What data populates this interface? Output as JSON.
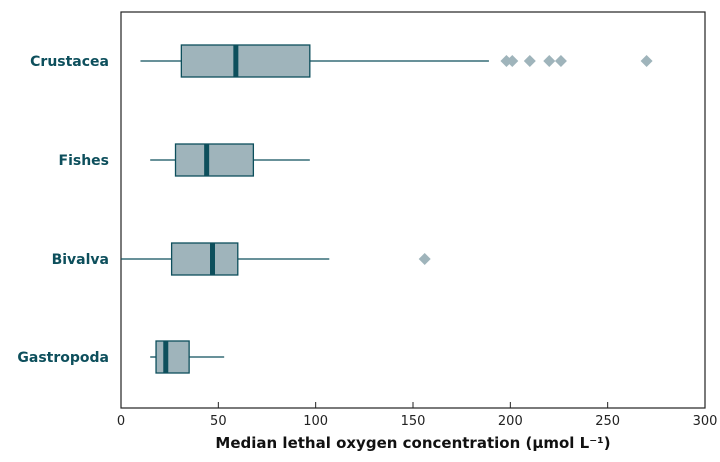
{
  "chart_data": {
    "type": "boxplot",
    "orientation": "horizontal",
    "title": "",
    "xlabel": "Median lethal oxygen concentration (μmol L⁻¹)",
    "ylabel": "",
    "xlim": [
      0,
      300
    ],
    "x_ticks": [
      0,
      50,
      100,
      150,
      200,
      250,
      300
    ],
    "grid": false,
    "legend": "none",
    "colors": {
      "box_fill": "#9fb4bb",
      "box_stroke": "#0d4f5c",
      "median": "#0d4f5c",
      "whisker": "#0d4f5c",
      "outlier": "#9fb4bb",
      "label": "#0d4f5c"
    },
    "categories": [
      "Crustacea",
      "Fishes",
      "Bivalva",
      "Gastropoda"
    ],
    "boxes": [
      {
        "category": "Crustacea",
        "whisker_low": 10,
        "q1": 31,
        "median": 59,
        "q3": 97,
        "whisker_high": 189,
        "outliers": [
          198,
          201,
          210,
          220,
          226,
          270
        ]
      },
      {
        "category": "Fishes",
        "whisker_low": 15,
        "q1": 28,
        "median": 44,
        "q3": 68,
        "whisker_high": 97,
        "outliers": []
      },
      {
        "category": "Bivalva",
        "whisker_low": 0,
        "q1": 26,
        "median": 47,
        "q3": 60,
        "whisker_high": 107,
        "outliers": [
          156
        ]
      },
      {
        "category": "Gastropoda",
        "whisker_low": 15,
        "q1": 18,
        "median": 23,
        "q3": 35,
        "whisker_high": 53,
        "outliers": []
      }
    ]
  }
}
